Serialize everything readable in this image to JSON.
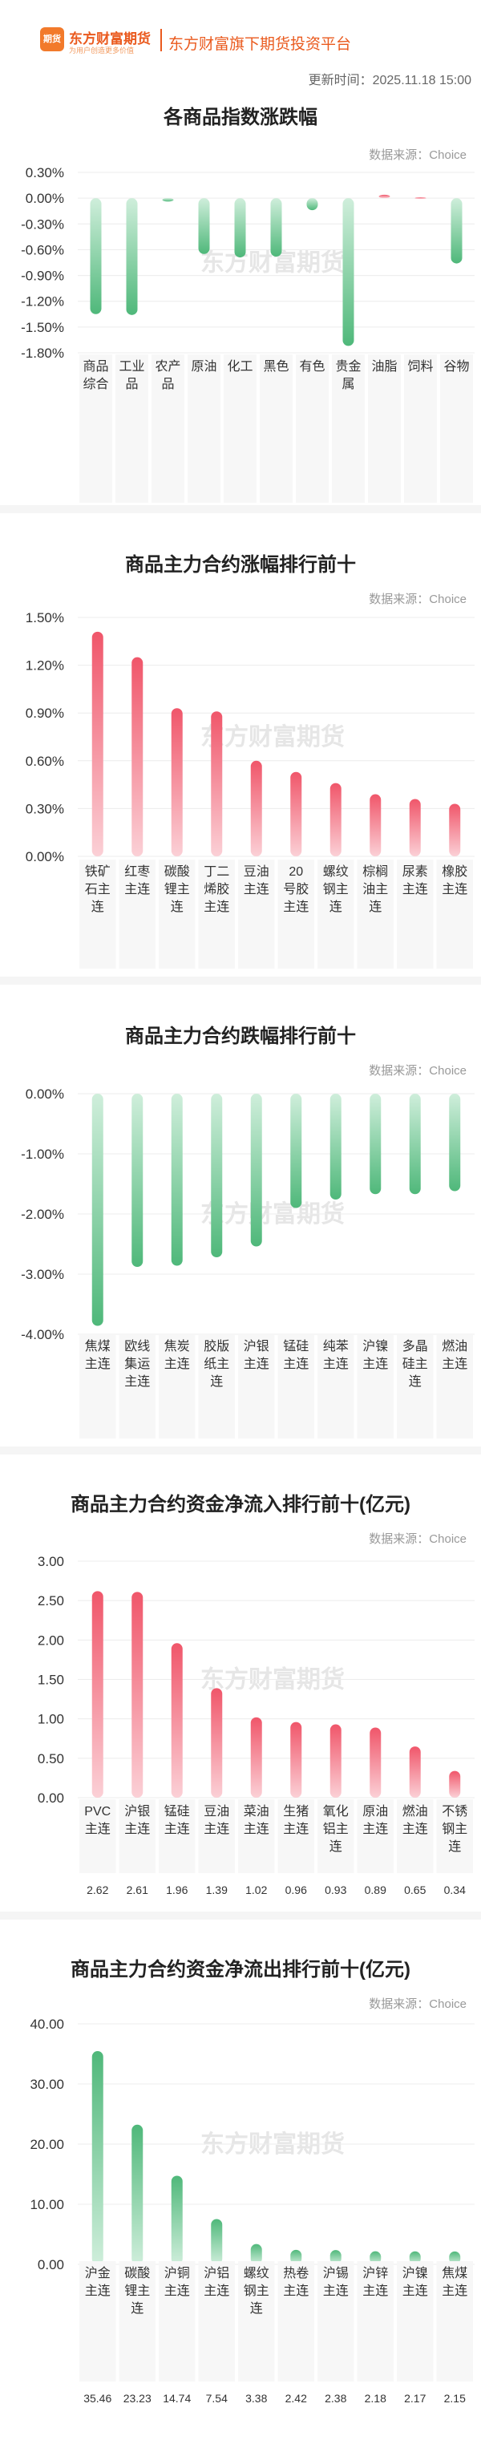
{
  "header": {
    "logo_badge": "期货",
    "logo_name": "东方财富期货",
    "logo_slogan": "为用户创造更多价值",
    "subtitle": "东方财富旗下期货投资平台",
    "update_time": "更新时间：2025.11.18 15:00"
  },
  "charts": [
    {
      "title": "各商品指数涨跌幅",
      "source": "数据来源：Choice",
      "watermark": "东方财富期货"
    },
    {
      "title": "商品主力合约涨幅排行前十",
      "source": "数据来源：Choice",
      "watermark": "东方财富期货"
    },
    {
      "title": "商品主力合约跌幅排行前十",
      "source": "数据来源：Choice",
      "watermark": "东方财富期货"
    },
    {
      "title": "商品主力合约资金净流入排行前十(亿元)",
      "source": "数据来源：Choice",
      "watermark": "东方财富期货"
    },
    {
      "title": "商品主力合约资金净流出排行前十(亿元)",
      "source": "数据来源：Choice",
      "watermark": "东方财富期货"
    }
  ],
  "chart_data": [
    {
      "type": "bar",
      "title": "各商品指数涨跌幅",
      "categories": [
        "商品综合",
        "工业品",
        "农产品",
        "原油",
        "化工",
        "黑色",
        "有色",
        "贵金属",
        "油脂",
        "饲料",
        "谷物"
      ],
      "values": [
        -1.35,
        -1.36,
        -0.04,
        -0.65,
        -0.69,
        -0.68,
        -0.14,
        -1.72,
        0.04,
        0.01,
        -0.76
      ],
      "value_labels": [
        "-1.35%",
        "-1.36%",
        "-0.04%",
        "-0.65%",
        "-0.69%",
        "-0.68%",
        "-0.14%",
        "-1.72%",
        "0.04%",
        "0.01%",
        "-0.76%"
      ],
      "ylim": [
        -1.8,
        0.3
      ],
      "yticks": [
        0.3,
        0.0,
        -0.3,
        -0.6,
        -0.9,
        -1.2,
        -1.5,
        -1.8
      ],
      "ytick_labels": [
        "0.30%",
        "0.00%",
        "-0.30%",
        "-0.60%",
        "-0.90%",
        "-1.20%",
        "-1.50%",
        "-1.80%"
      ],
      "colors": {
        "positive": "#f0566a",
        "negative": "#4fb87a"
      }
    },
    {
      "type": "bar",
      "title": "商品主力合约涨幅排行前十",
      "categories": [
        "铁矿石主连",
        "红枣主连",
        "碳酸锂主连",
        "丁二烯胶主连",
        "豆油主连",
        "20号胶主连",
        "螺纹钢主连",
        "棕榈油主连",
        "尿素主连",
        "橡胶主连"
      ],
      "values": [
        1.41,
        1.25,
        0.93,
        0.91,
        0.6,
        0.53,
        0.46,
        0.39,
        0.36,
        0.33
      ],
      "value_labels": [
        "1.41%",
        "1.25%",
        "0.93%",
        "0.91%",
        "0.60%",
        "0.53%",
        "0.46%",
        "0.39%",
        "0.36%",
        "0.33%"
      ],
      "ylim": [
        0,
        1.5
      ],
      "yticks": [
        1.5,
        1.2,
        0.9,
        0.6,
        0.3,
        0.0
      ],
      "ytick_labels": [
        "1.50%",
        "1.20%",
        "0.90%",
        "0.60%",
        "0.30%",
        "0.00%"
      ],
      "colors": {
        "positive": "#f0566a",
        "negative": "#4fb87a"
      }
    },
    {
      "type": "bar",
      "title": "商品主力合约跌幅排行前十",
      "categories": [
        "焦煤主连",
        "欧线集运主连",
        "焦炭主连",
        "胶版纸主连",
        "沪银主连",
        "锰硅主连",
        "纯苯主连",
        "沪镍主连",
        "多晶硅主连",
        "燃油主连"
      ],
      "values": [
        -3.86,
        -2.88,
        -2.86,
        -2.72,
        -2.54,
        -1.9,
        -1.76,
        -1.67,
        -1.67,
        -1.62
      ],
      "value_labels": [
        "-3.86%",
        "-2.88%",
        "-2.86%",
        "-2.72%",
        "-2.54%",
        "-1.90%",
        "-1.76%",
        "-1.67%",
        "-1.67%",
        "-1.62%"
      ],
      "ylim": [
        -4.0,
        0
      ],
      "yticks": [
        0.0,
        -1.0,
        -2.0,
        -3.0,
        -4.0
      ],
      "ytick_labels": [
        "0.00%",
        "-1.00%",
        "-2.00%",
        "-3.00%",
        "-4.00%"
      ],
      "colors": {
        "positive": "#f0566a",
        "negative": "#4fb87a"
      }
    },
    {
      "type": "bar",
      "title": "商品主力合约资金净流入排行前十(亿元)",
      "categories": [
        "PVC主连",
        "沪银主连",
        "锰硅主连",
        "豆油主连",
        "菜油主连",
        "生猪主连",
        "氧化铝主连",
        "原油主连",
        "燃油主连",
        "不锈钢主连"
      ],
      "values": [
        2.62,
        2.61,
        1.96,
        1.39,
        1.02,
        0.96,
        0.93,
        0.89,
        0.65,
        0.34
      ],
      "value_labels": [
        "2.62",
        "2.61",
        "1.96",
        "1.39",
        "1.02",
        "0.96",
        "0.93",
        "0.89",
        "0.65",
        "0.34"
      ],
      "ylim": [
        0,
        3.0
      ],
      "yticks": [
        3.0,
        2.5,
        2.0,
        1.5,
        1.0,
        0.5,
        0.0
      ],
      "ytick_labels": [
        "3.00",
        "2.50",
        "2.00",
        "1.50",
        "1.00",
        "0.50",
        "0.00"
      ],
      "colors": {
        "positive": "#f0566a",
        "negative": "#4fb87a"
      }
    },
    {
      "type": "bar",
      "title": "商品主力合约资金净流出排行前十(亿元)",
      "categories": [
        "沪金主连",
        "碳酸锂主连",
        "沪铜主连",
        "沪铝主连",
        "螺纹钢主连",
        "热卷主连",
        "沪锡主连",
        "沪锌主连",
        "沪镍主连",
        "焦煤主连"
      ],
      "values": [
        35.46,
        23.23,
        14.74,
        7.54,
        3.38,
        2.42,
        2.38,
        2.18,
        2.17,
        2.15
      ],
      "value_labels": [
        "35.46",
        "23.23",
        "14.74",
        "7.54",
        "3.38",
        "2.42",
        "2.38",
        "2.18",
        "2.17",
        "2.15"
      ],
      "ylim": [
        0,
        40
      ],
      "yticks": [
        40,
        30,
        20,
        10,
        0
      ],
      "ytick_labels": [
        "40.00",
        "30.00",
        "20.00",
        "10.00",
        "0.00"
      ],
      "colors": {
        "positive": "#4fb87a",
        "negative": "#4fb87a"
      }
    }
  ]
}
